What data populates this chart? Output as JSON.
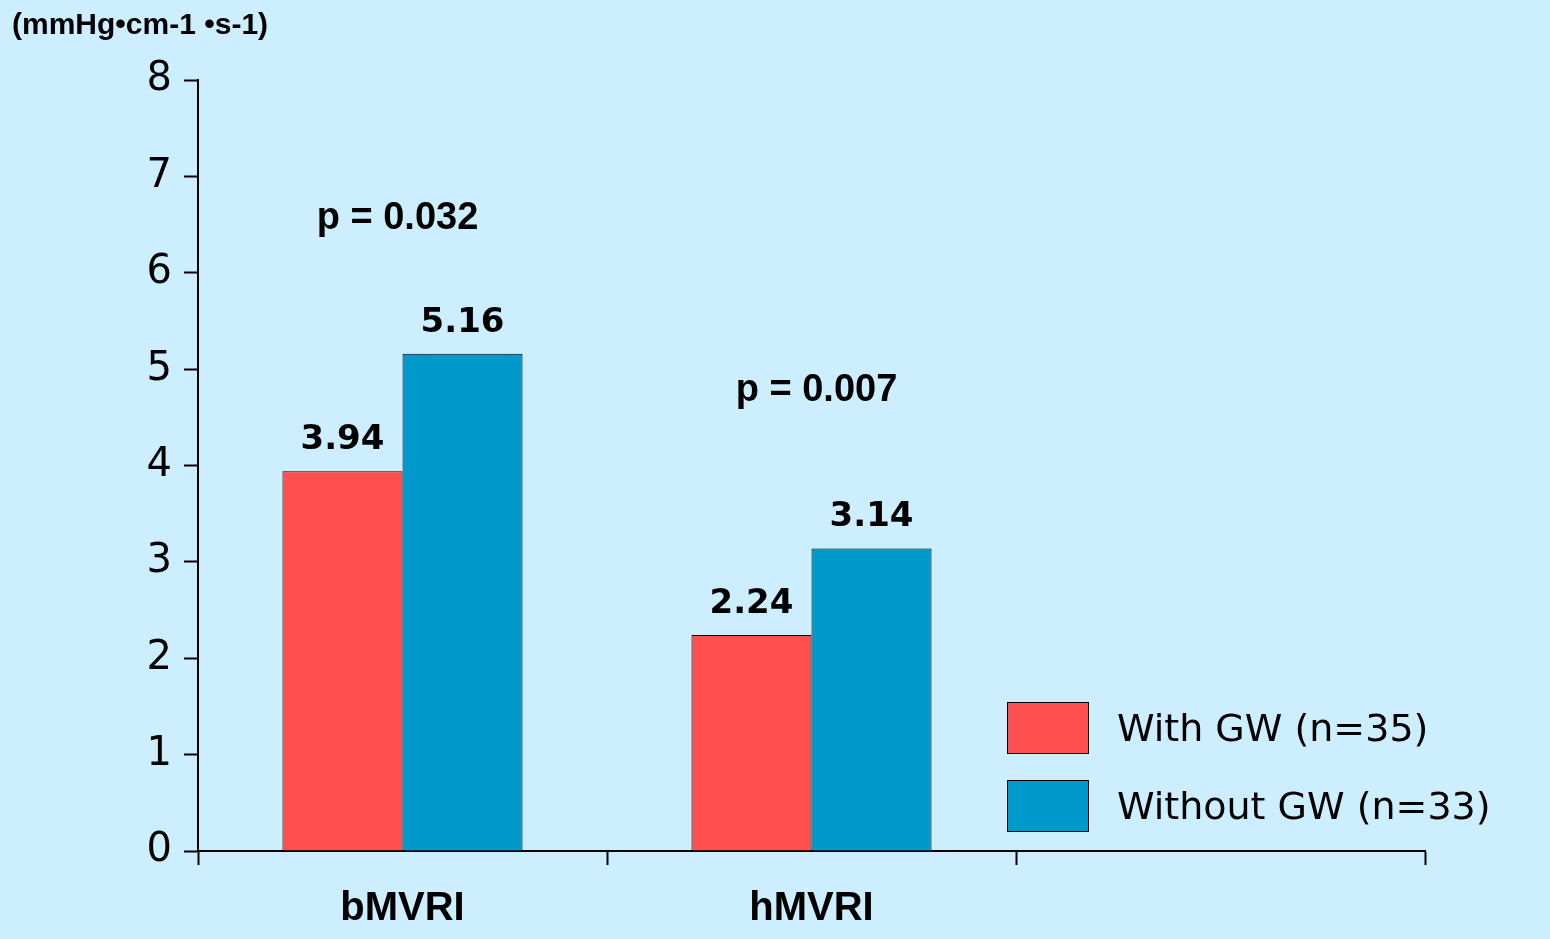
{
  "chart_data": {
    "type": "bar",
    "ylabel": "(mmHg•cm-1 •s-1)",
    "categories": [
      "bMVRI",
      "hMVRI",
      null
    ],
    "series": [
      {
        "name": "With GW (n=35)",
        "color": "#ff4f4f",
        "values": [
          3.94,
          2.24,
          null
        ]
      },
      {
        "name": "Without GW (n=33)",
        "color": "#0099cc",
        "values": [
          5.16,
          3.14,
          null
        ]
      }
    ],
    "ylim": [
      0,
      8
    ],
    "yticks": [
      0,
      1,
      2,
      3,
      4,
      5,
      6,
      7,
      8
    ],
    "grid": false,
    "legend": "bottom right",
    "data_labels": true,
    "annotations": [
      "p = 0.032",
      "p = 0.007"
    ]
  }
}
